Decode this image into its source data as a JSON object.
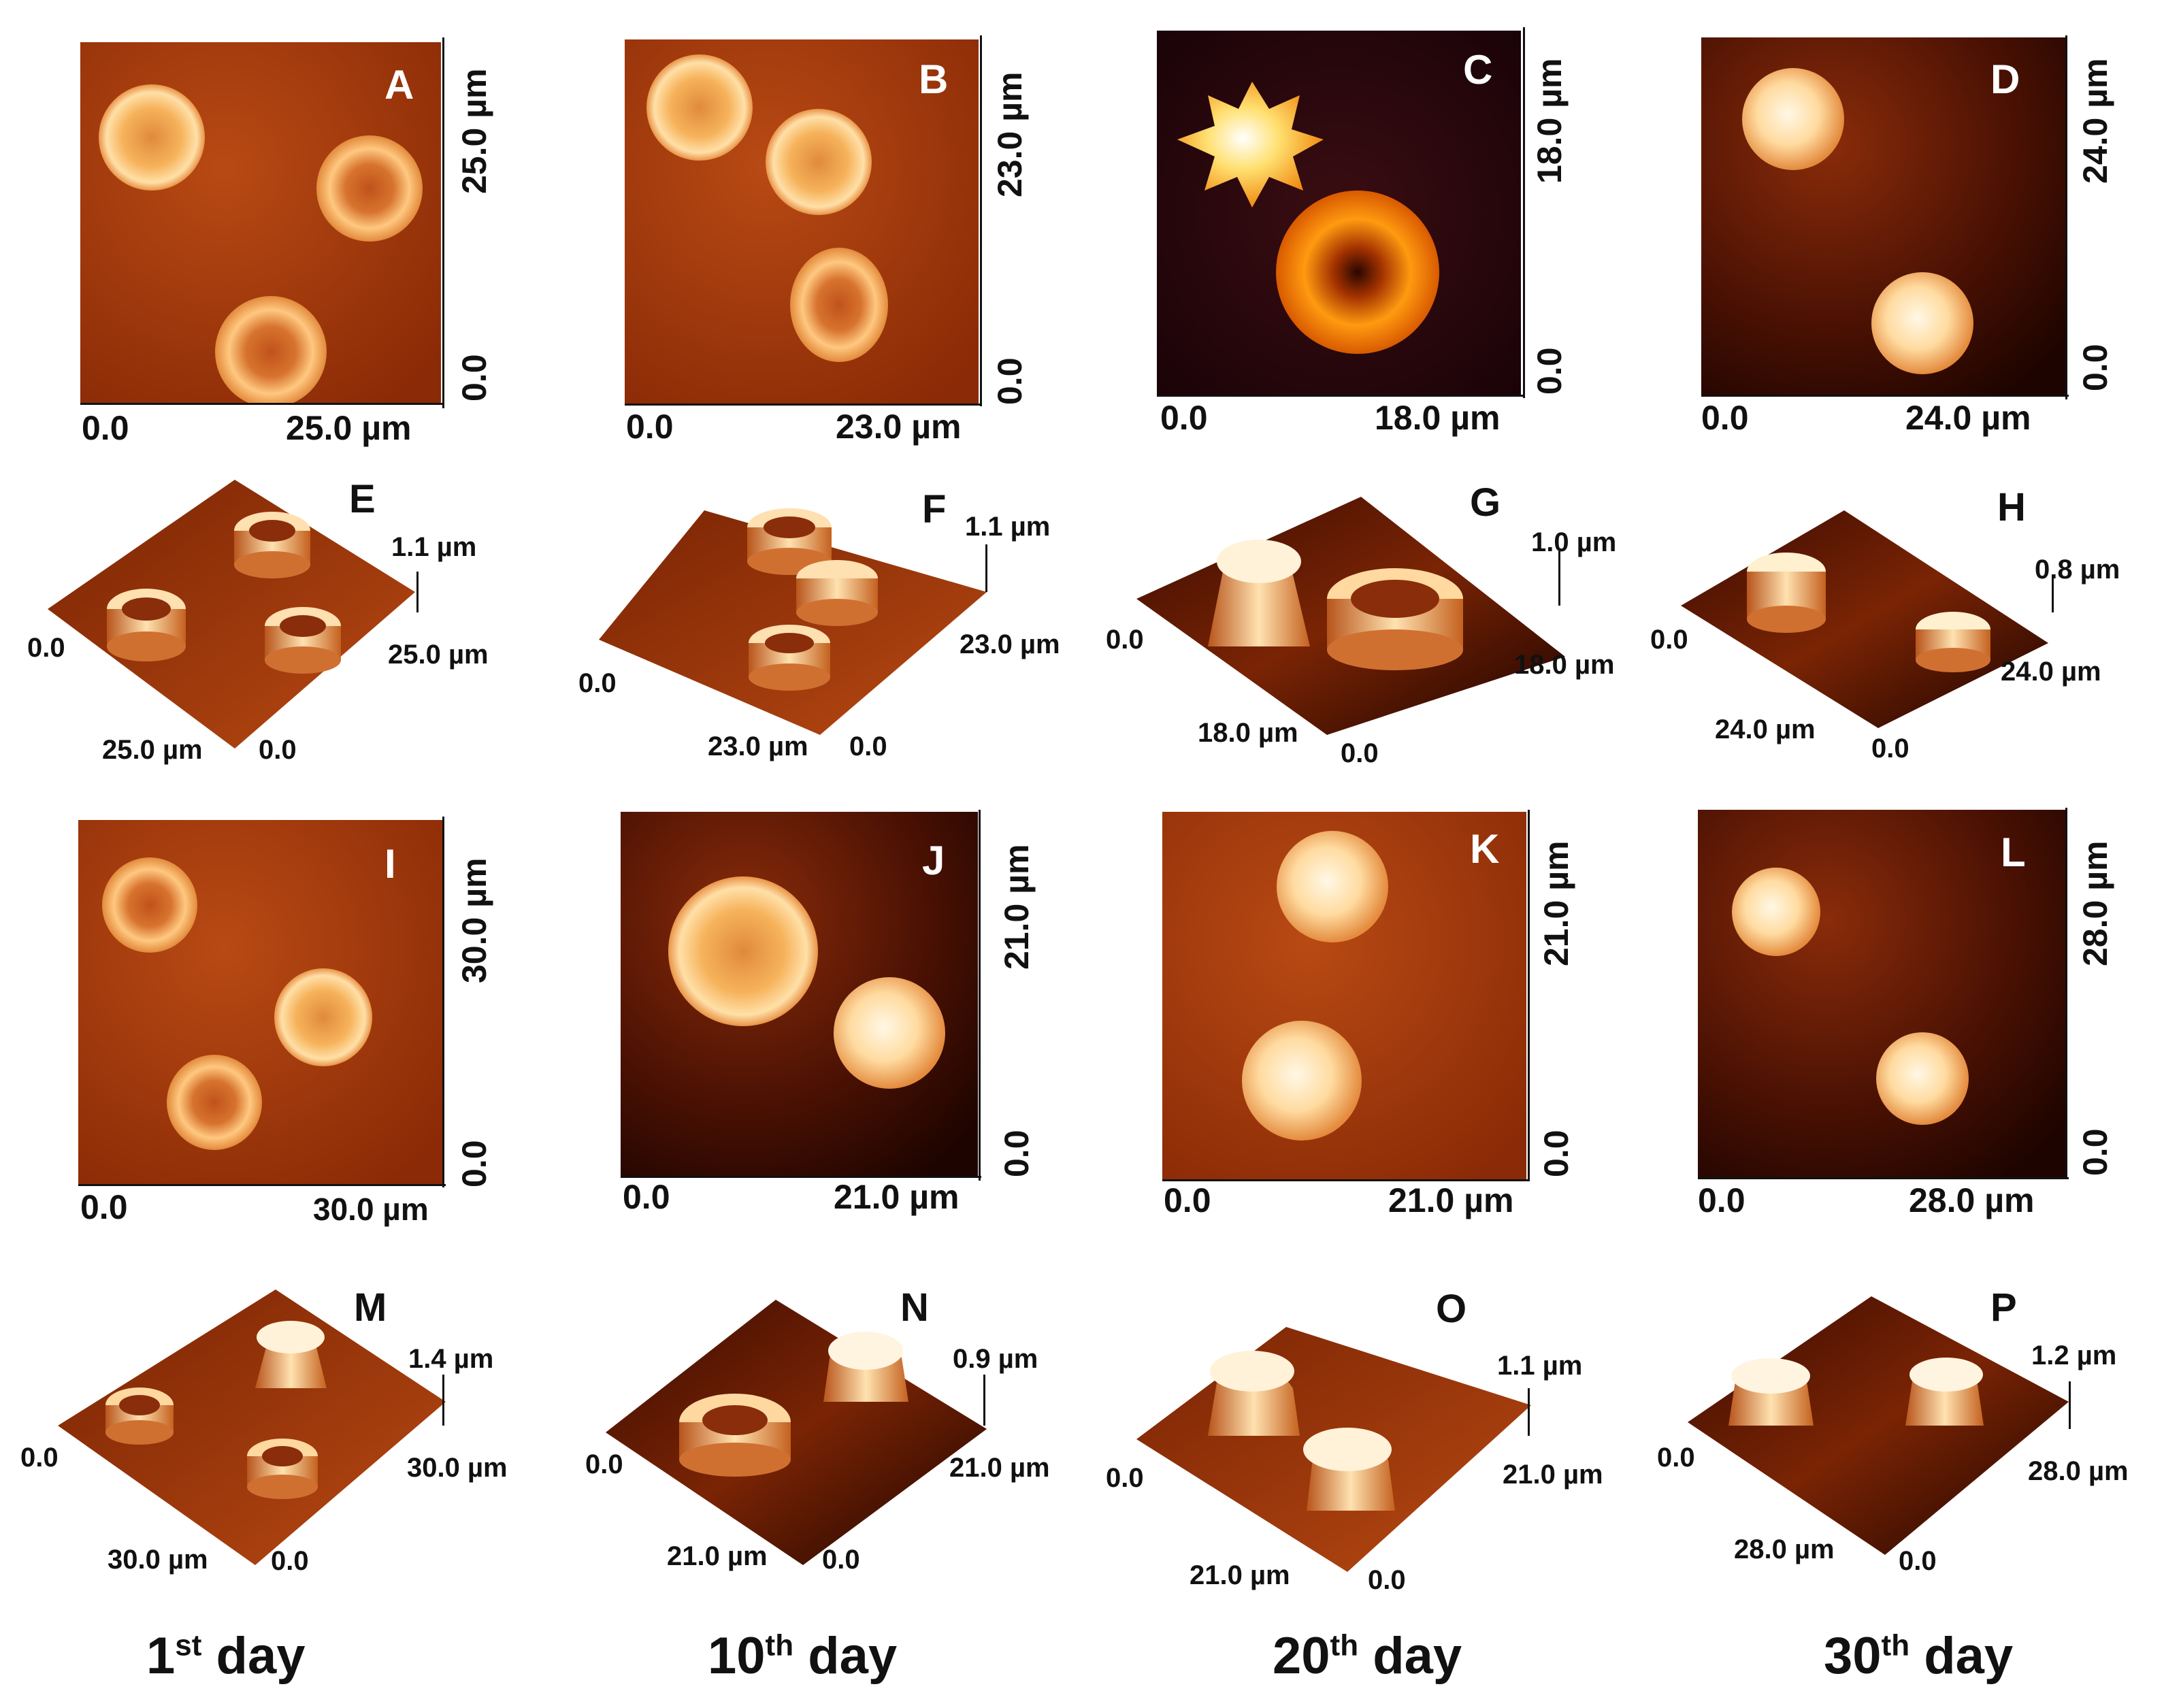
{
  "colors": {
    "afm_dark": "#2a0700",
    "afm_mid": "#a33a0a",
    "afm_light": "#ffe6b0",
    "afm_peak": "#fffbe8"
  },
  "panels_2d": [
    {
      "letter": "A",
      "x0": "0.0",
      "x1": "25.0 µm",
      "y0": "0.0",
      "y1": "25.0 µm"
    },
    {
      "letter": "B",
      "x0": "0.0",
      "x1": "23.0 µm",
      "y0": "0.0",
      "y1": "23.0 µm"
    },
    {
      "letter": "C",
      "x0": "0.0",
      "x1": "18.0 µm",
      "y0": "0.0",
      "y1": "18.0 µm"
    },
    {
      "letter": "D",
      "x0": "0.0",
      "x1": "24.0 µm",
      "y0": "0.0",
      "y1": "24.0 µm"
    },
    {
      "letter": "I",
      "x0": "0.0",
      "x1": "30.0 µm",
      "y0": "0.0",
      "y1": "30.0 µm"
    },
    {
      "letter": "J",
      "x0": "0.0",
      "x1": "21.0 µm",
      "y0": "0.0",
      "y1": "21.0 µm"
    },
    {
      "letter": "K",
      "x0": "0.0",
      "x1": "21.0 µm",
      "y0": "0.0",
      "y1": "21.0 µm"
    },
    {
      "letter": "L",
      "x0": "0.0",
      "x1": "28.0 µm",
      "y0": "0.0",
      "y1": "28.0 µm"
    }
  ],
  "panels_3d": [
    {
      "letter": "E",
      "z": "1.1 µm",
      "left0": "0.0",
      "left1": "25.0 µm",
      "right0": "0.0",
      "right1": "25.0 µm"
    },
    {
      "letter": "F",
      "z": "1.1 µm",
      "left0": "0.0",
      "left1": "23.0 µm",
      "right0": "0.0",
      "right1": "23.0 µm"
    },
    {
      "letter": "G",
      "z": "1.0 µm",
      "left0": "0.0",
      "left1": "18.0 µm",
      "right0": "0.0",
      "right1": "18.0 µm"
    },
    {
      "letter": "H",
      "z": "0.8 µm",
      "left0": "0.0",
      "left1": "24.0 µm",
      "right0": "0.0",
      "right1": "24.0 µm"
    },
    {
      "letter": "M",
      "z": "1.4 µm",
      "left0": "0.0",
      "left1": "30.0 µm",
      "right0": "0.0",
      "right1": "30.0 µm"
    },
    {
      "letter": "N",
      "z": "0.9 µm",
      "left0": "0.0",
      "left1": "21.0 µm",
      "right0": "0.0",
      "right1": "21.0 µm"
    },
    {
      "letter": "O",
      "z": "1.1 µm",
      "left0": "0.0",
      "left1": "21.0 µm",
      "right0": "0.0",
      "right1": "21.0 µm"
    },
    {
      "letter": "P",
      "z": "1.2 µm",
      "left0": "0.0",
      "left1": "28.0 µm",
      "right0": "0.0",
      "right1": "28.0 µm"
    }
  ],
  "days": [
    {
      "num": "1",
      "sup": "st",
      "word": "day"
    },
    {
      "num": "10",
      "sup": "th",
      "word": "day"
    },
    {
      "num": "20",
      "sup": "th",
      "word": "day"
    },
    {
      "num": "30",
      "sup": "th",
      "word": "day"
    }
  ]
}
